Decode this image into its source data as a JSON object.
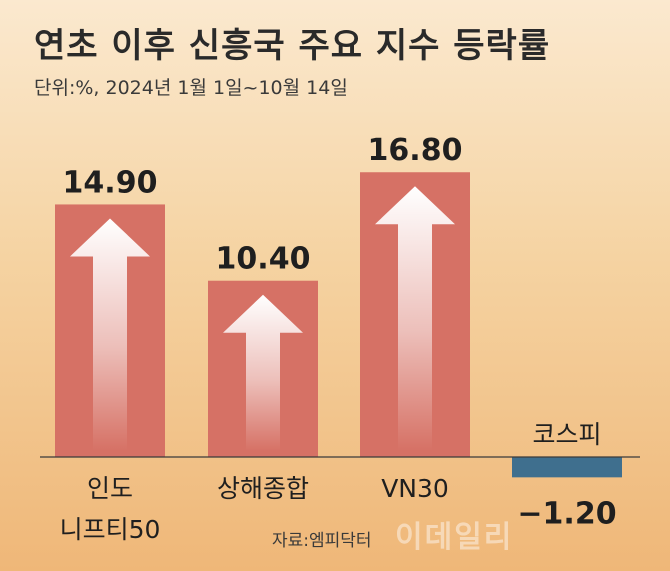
{
  "header": {
    "title": "연초 이후 신흥국 주요 지수 등락률",
    "unit": "단위:%, 2024년 1월 1일~10월 14일"
  },
  "footer": {
    "source": "자료:엠피닥터",
    "watermark": "이데일리"
  },
  "colors": {
    "positive_bar": "#d67165",
    "negative_bar": "#3f6f8e",
    "arrow": "#ffffff"
  },
  "chart_data": {
    "type": "bar",
    "categories": [
      "인도 니프티50",
      "상해종합",
      "VN30",
      "코스피"
    ],
    "category_lines": [
      [
        "인도",
        "니프티50"
      ],
      [
        "상해종합"
      ],
      [
        "VN30"
      ],
      [
        "코스피"
      ]
    ],
    "values": [
      14.9,
      10.4,
      16.8,
      -1.2
    ],
    "value_labels": [
      "14.90",
      "10.40",
      "16.80",
      "−1.20"
    ],
    "title": "연초 이후 신흥국 주요 지수 등락률",
    "xlabel": "",
    "ylabel": "",
    "ylim": [
      -1.5,
      17
    ],
    "grid": false,
    "legend": "none"
  }
}
